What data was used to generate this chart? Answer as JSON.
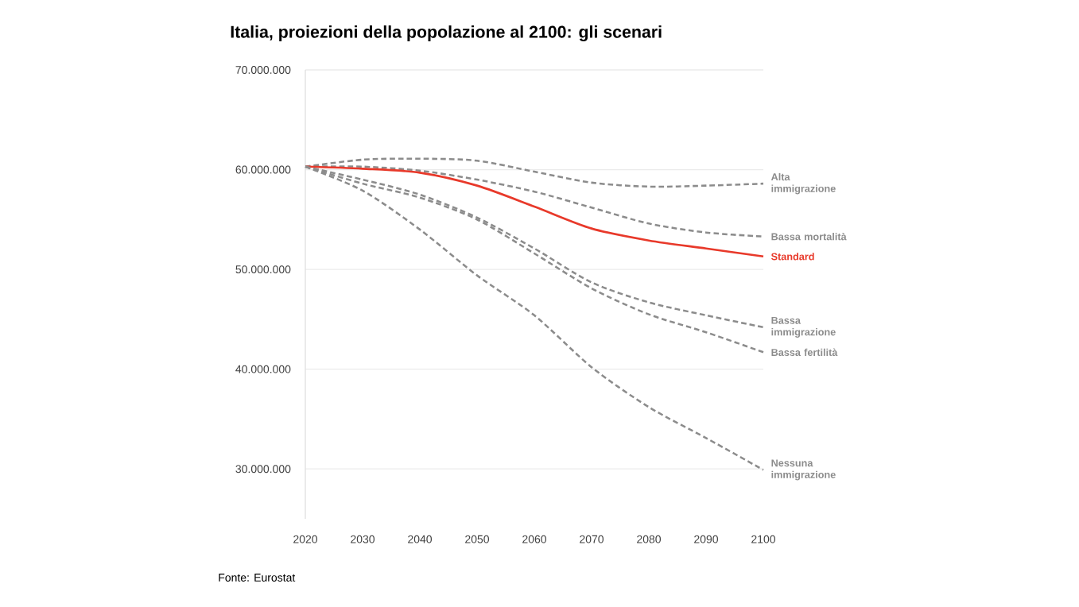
{
  "chart_data": {
    "type": "line",
    "title": "Italia, proiezioni della popolazione al 2100: gli scenari",
    "x": [
      2020,
      2030,
      2040,
      2050,
      2060,
      2070,
      2080,
      2090,
      2100
    ],
    "series": [
      {
        "name": "Alta immigrazione",
        "color": "#8c8c8c",
        "values": [
          60300000,
          61000000,
          61100000,
          60900000,
          59800000,
          58700000,
          58300000,
          58400000,
          58600000
        ]
      },
      {
        "name": "Bassa mortalità",
        "color": "#8c8c8c",
        "values": [
          60300000,
          60300000,
          59900000,
          59000000,
          57800000,
          56200000,
          54600000,
          53700000,
          53300000
        ]
      },
      {
        "name": "Standard",
        "color": "#e8392a",
        "line_style": "solid",
        "values": [
          60300000,
          60100000,
          59700000,
          58400000,
          56300000,
          54100000,
          52900000,
          52100000,
          51300000
        ]
      },
      {
        "name": "Bassa immigrazione",
        "color": "#8c8c8c",
        "values": [
          60300000,
          59000000,
          57500000,
          55200000,
          52100000,
          48700000,
          46700000,
          45400000,
          44200000
        ]
      },
      {
        "name": "Bassa fertilità",
        "color": "#8c8c8c",
        "values": [
          60300000,
          58600000,
          57200000,
          55000000,
          51600000,
          48100000,
          45500000,
          43700000,
          41700000
        ]
      },
      {
        "name": "Nessuna immigrazione",
        "color": "#8c8c8c",
        "values": [
          60300000,
          57900000,
          54000000,
          49400000,
          45400000,
          40200000,
          36200000,
          33100000,
          29900000
        ]
      }
    ],
    "xlim": [
      2020,
      2100
    ],
    "xticks": [
      2020,
      2030,
      2040,
      2050,
      2060,
      2070,
      2080,
      2090,
      2100
    ],
    "ylim": [
      25000000,
      70000000
    ],
    "yticks": [
      {
        "value": 30000000,
        "label": "30.000.000"
      },
      {
        "value": 40000000,
        "label": "40.000.000"
      },
      {
        "value": 50000000,
        "label": "50.000.000"
      },
      {
        "value": 60000000,
        "label": "60.000.000"
      },
      {
        "value": 70000000,
        "label": "70.000.000"
      }
    ],
    "grid": "y",
    "legend": false,
    "marker": "none",
    "line_style": "dashed",
    "annotations": [
      "Fonte: Eurostat"
    ]
  }
}
